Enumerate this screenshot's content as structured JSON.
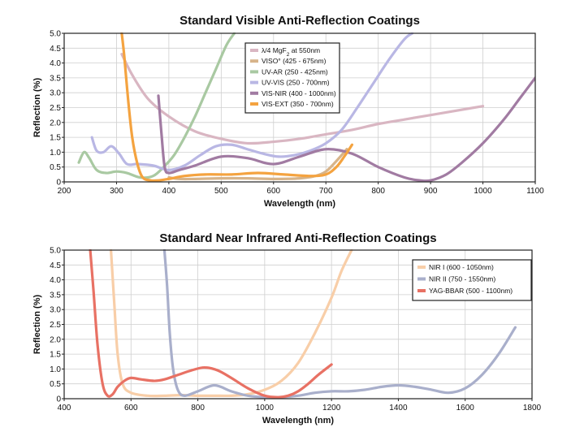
{
  "chart_data": [
    {
      "type": "line",
      "title": "Standard Visible Anti-Reflection Coatings",
      "xlabel": "Wavelength (nm)",
      "ylabel": "Reflection (%)",
      "xlim": [
        200,
        1100
      ],
      "ylim": [
        0,
        5.0
      ],
      "xticks": [
        200,
        300,
        400,
        500,
        600,
        700,
        800,
        900,
        1000,
        1100
      ],
      "yticks": [
        0,
        0.5,
        1.0,
        1.5,
        2.0,
        2.5,
        3.0,
        3.5,
        4.0,
        4.5,
        5.0
      ],
      "xtick_labels": [
        "200",
        "300",
        "400",
        "500",
        "600",
        "700",
        "800",
        "900",
        "1000",
        "1100"
      ],
      "ytick_labels": [
        "0",
        "0.5",
        "1.0",
        "1.5",
        "2.0",
        "2.5",
        "3.0",
        "3.5",
        "4.0",
        "4.5",
        "5.0"
      ],
      "grid": true,
      "legend_position": "top-center",
      "series": [
        {
          "name": "λ/4 MgF2 at 550nm",
          "label_main": "λ/4 MgF",
          "label_sub": "2",
          "label_tail": " at 550nm",
          "color": "#d9b6c2",
          "x": [
            310,
            330,
            360,
            400,
            450,
            500,
            550,
            600,
            650,
            700,
            750,
            800,
            850,
            900,
            950,
            1000
          ],
          "y": [
            4.3,
            3.6,
            2.8,
            2.2,
            1.7,
            1.45,
            1.3,
            1.35,
            1.45,
            1.6,
            1.75,
            1.95,
            2.1,
            2.25,
            2.4,
            2.55
          ]
        },
        {
          "name": "VISO° (425 - 675nm)",
          "label_main": "VISO° (425 - 675nm)",
          "color": "#d7b48a",
          "x": [
            400,
            420,
            450,
            500,
            550,
            600,
            650,
            680,
            700,
            720,
            740
          ],
          "y": [
            0.15,
            0.1,
            0.1,
            0.12,
            0.12,
            0.1,
            0.12,
            0.2,
            0.35,
            0.7,
            1.1
          ]
        },
        {
          "name": "UV-AR (250 - 425nm)",
          "label_main": "UV-AR (250 - 425nm)",
          "color": "#a9c9a2",
          "x": [
            228,
            238,
            248,
            262,
            280,
            300,
            320,
            345,
            370,
            390,
            410,
            430,
            450,
            470,
            490,
            510,
            525
          ],
          "y": [
            0.65,
            1.0,
            0.8,
            0.4,
            0.3,
            0.35,
            0.3,
            0.15,
            0.2,
            0.5,
            0.9,
            1.5,
            2.2,
            3.0,
            3.8,
            4.6,
            5.0
          ]
        },
        {
          "name": "UV-VIS (250 - 700nm)",
          "label_main": "UV-VIS (250 - 700nm)",
          "color": "#b9b7e4",
          "x": [
            253,
            262,
            275,
            290,
            305,
            320,
            340,
            370,
            400,
            430,
            460,
            490,
            520,
            550,
            580,
            610,
            640,
            670,
            700,
            730,
            760,
            790,
            820,
            850,
            865
          ],
          "y": [
            1.5,
            1.05,
            1.0,
            1.2,
            0.95,
            0.6,
            0.6,
            0.55,
            0.4,
            0.55,
            0.9,
            1.2,
            1.25,
            1.1,
            0.95,
            0.85,
            0.9,
            1.05,
            1.3,
            1.75,
            2.5,
            3.3,
            4.1,
            4.8,
            5.0
          ]
        },
        {
          "name": "VIS-NIR (400 - 1000nm)",
          "label_main": "VIS-NIR (400 - 1000nm)",
          "color": "#a17ba2",
          "x": [
            380,
            386,
            392,
            400,
            420,
            450,
            500,
            550,
            600,
            650,
            700,
            750,
            800,
            850,
            880,
            900,
            930,
            960,
            1000,
            1040,
            1070,
            1100
          ],
          "y": [
            2.9,
            1.6,
            0.5,
            0.3,
            0.4,
            0.55,
            0.85,
            0.8,
            0.6,
            0.85,
            1.1,
            0.95,
            0.5,
            0.15,
            0.05,
            0.05,
            0.25,
            0.65,
            1.3,
            2.1,
            2.8,
            3.5
          ]
        },
        {
          "name": "VIS-EXT (350 - 700nm)",
          "label_main": "VIS-EXT (350 - 700nm)",
          "color": "#f4a340",
          "x": [
            310,
            315,
            322,
            330,
            340,
            350,
            365,
            380,
            400,
            430,
            470,
            520,
            570,
            620,
            670,
            700,
            720,
            735,
            750
          ],
          "y": [
            5.0,
            4.2,
            2.8,
            1.5,
            0.6,
            0.15,
            0.05,
            0.05,
            0.1,
            0.2,
            0.25,
            0.25,
            0.3,
            0.25,
            0.2,
            0.25,
            0.5,
            0.85,
            1.25
          ]
        }
      ]
    },
    {
      "type": "line",
      "title": "Standard Near Infrared Anti-Reflection Coatings",
      "xlabel": "Wavelength (nm)",
      "ylabel": "Reflection (%)",
      "xlim": [
        400,
        1800
      ],
      "ylim": [
        0,
        5.0
      ],
      "xticks": [
        400,
        600,
        800,
        1000,
        1200,
        1400,
        1600,
        1800
      ],
      "yticks": [
        0,
        0.5,
        1.0,
        1.5,
        2.0,
        2.5,
        3.0,
        3.5,
        4.0,
        4.5,
        5.0
      ],
      "xtick_labels": [
        "400",
        "600",
        "800",
        "1000",
        "1200",
        "1400",
        "1600",
        "1800"
      ],
      "ytick_labels": [
        "0",
        "0.5",
        "1.0",
        "1.5",
        "2.0",
        "2.5",
        "3.0",
        "3.5",
        "4.0",
        "4.5",
        "5.0"
      ],
      "grid": true,
      "legend_position": "top-right",
      "series": [
        {
          "name": "NIR I (600 - 1050nm)",
          "label_main": "NIR I (600 - 1050nm)",
          "color": "#f8cea8",
          "x": [
            540,
            550,
            560,
            575,
            600,
            650,
            700,
            750,
            800,
            850,
            900,
            950,
            1000,
            1050,
            1100,
            1150,
            1200,
            1230,
            1260
          ],
          "y": [
            5.0,
            3.2,
            1.5,
            0.5,
            0.2,
            0.1,
            0.1,
            0.12,
            0.1,
            0.1,
            0.1,
            0.15,
            0.3,
            0.6,
            1.2,
            2.2,
            3.4,
            4.3,
            5.0
          ]
        },
        {
          "name": "NIR II (750 - 1550nm)",
          "label_main": "NIR II (750 - 1550nm)",
          "color": "#a9afcb",
          "x": [
            700,
            708,
            716,
            726,
            740,
            760,
            800,
            850,
            900,
            950,
            1000,
            1050,
            1100,
            1150,
            1200,
            1250,
            1300,
            1350,
            1400,
            1450,
            1500,
            1550,
            1600,
            1650,
            1700,
            1750
          ],
          "y": [
            5.0,
            3.8,
            2.2,
            1.0,
            0.3,
            0.1,
            0.25,
            0.45,
            0.25,
            0.1,
            0.05,
            0.05,
            0.1,
            0.2,
            0.25,
            0.25,
            0.3,
            0.4,
            0.45,
            0.4,
            0.3,
            0.2,
            0.35,
            0.8,
            1.5,
            2.4
          ]
        },
        {
          "name": "YAG-BBAR (500 - 1100nm)",
          "label_main": "YAG-BBAR (500 - 1100nm)",
          "color": "#e87164",
          "x": [
            478,
            488,
            500,
            515,
            530,
            545,
            560,
            580,
            600,
            630,
            670,
            700,
            740,
            780,
            820,
            860,
            900,
            950,
            1000,
            1040,
            1070,
            1100,
            1130,
            1160,
            1200
          ],
          "y": [
            5.0,
            3.6,
            1.8,
            0.5,
            0.1,
            0.15,
            0.4,
            0.6,
            0.7,
            0.65,
            0.6,
            0.65,
            0.8,
            0.95,
            1.05,
            0.95,
            0.7,
            0.35,
            0.1,
            0.05,
            0.1,
            0.25,
            0.5,
            0.8,
            1.15
          ]
        }
      ]
    }
  ]
}
